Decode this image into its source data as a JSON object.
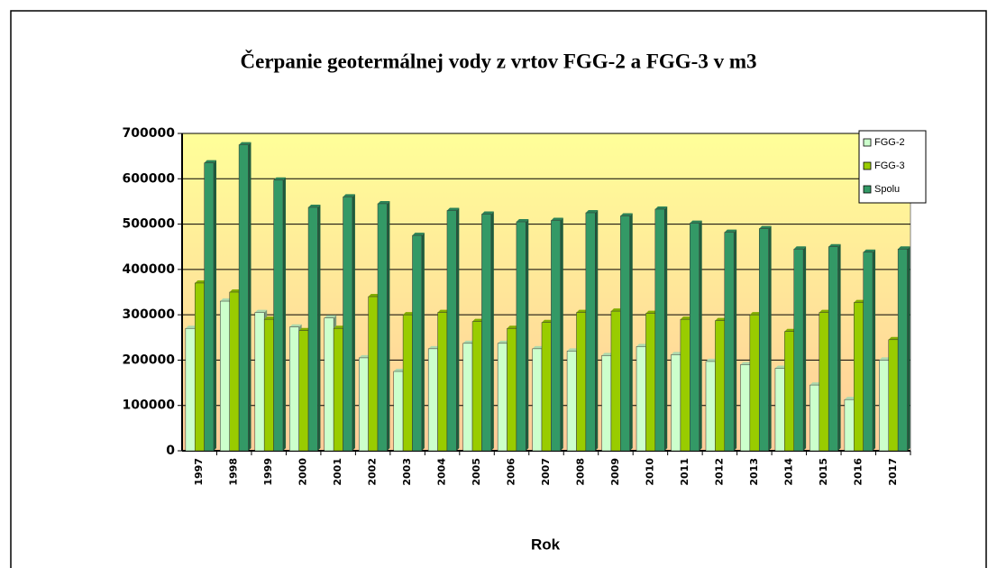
{
  "chart_data": {
    "type": "bar",
    "title": "Čerpanie geotermálnej vody z vrtov FGG-2 a FGG-3 v m3",
    "xlabel": "Rok",
    "categories": [
      "1997",
      "1998",
      "1999",
      "2000",
      "2001",
      "2002",
      "2003",
      "2004",
      "2005",
      "2006",
      "2007",
      "2008",
      "2009",
      "2010",
      "2011",
      "2012",
      "2013",
      "2014",
      "2015",
      "2016",
      "2017"
    ],
    "series": [
      {
        "name": "FGG-2",
        "color": "#ccffcc",
        "values": [
          270000,
          330000,
          305000,
          273000,
          293000,
          205000,
          175000,
          225000,
          237000,
          237000,
          225000,
          220000,
          210000,
          230000,
          212000,
          197000,
          190000,
          182000,
          145000,
          113000,
          200000
        ]
      },
      {
        "name": "FGG-3",
        "color": "#99cc00",
        "values": [
          370000,
          350000,
          290000,
          265000,
          270000,
          340000,
          300000,
          305000,
          285000,
          270000,
          283000,
          305000,
          308000,
          303000,
          290000,
          287000,
          300000,
          263000,
          305000,
          327000,
          245000
        ]
      },
      {
        "name": "Spolu",
        "color": "#339966",
        "values": [
          635000,
          675000,
          597000,
          537000,
          560000,
          545000,
          475000,
          530000,
          522000,
          505000,
          508000,
          525000,
          518000,
          533000,
          502000,
          482000,
          490000,
          445000,
          450000,
          438000,
          445000
        ]
      }
    ],
    "ylim": [
      0,
      700000
    ],
    "yticks": [
      0,
      100000,
      200000,
      300000,
      400000,
      500000,
      600000,
      700000
    ],
    "grid": true,
    "legend": "upper right"
  }
}
